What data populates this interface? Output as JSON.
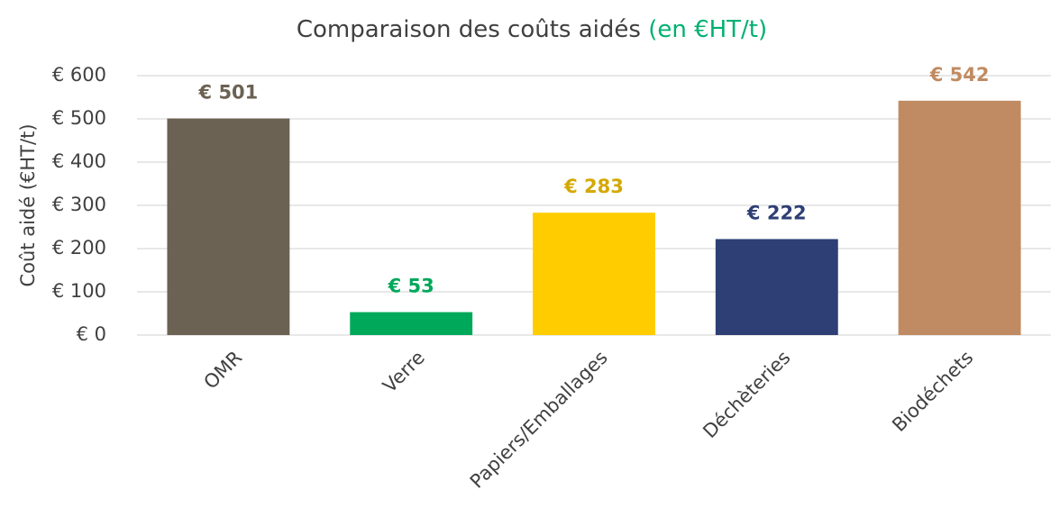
{
  "chart_data": {
    "type": "bar",
    "title": "Comparaison des coûts aidés",
    "title_unit": "(en €HT/t)",
    "y_label": "Coût aidé (€HT/t)",
    "categories": [
      "OMR",
      "Verre",
      "Papiers/Emballages",
      "Déchèteries",
      "Biodéchets"
    ],
    "values": [
      501,
      53,
      283,
      222,
      542
    ],
    "value_labels": [
      "€ 501",
      "€ 53",
      "€ 283",
      "€ 222",
      "€ 542"
    ],
    "colors": [
      "#6b6253",
      "#00a85a",
      "#ffcc00",
      "#2e3f75",
      "#c08b62"
    ],
    "value_label_colors": [
      "#6b6253",
      "#00a85a",
      "#d4a800",
      "#2e3f75",
      "#c08b62"
    ],
    "title_unit_color": "#00b070",
    "ylim": [
      0,
      600
    ],
    "yticks": [
      {
        "value": 0,
        "label": "€ 0"
      },
      {
        "value": 100,
        "label": "€ 100"
      },
      {
        "value": 200,
        "label": "€ 200"
      },
      {
        "value": 300,
        "label": "€ 300"
      },
      {
        "value": 400,
        "label": "€ 400"
      },
      {
        "value": 500,
        "label": "€ 500"
      },
      {
        "value": 600,
        "label": "€ 600"
      }
    ],
    "grid": true
  }
}
